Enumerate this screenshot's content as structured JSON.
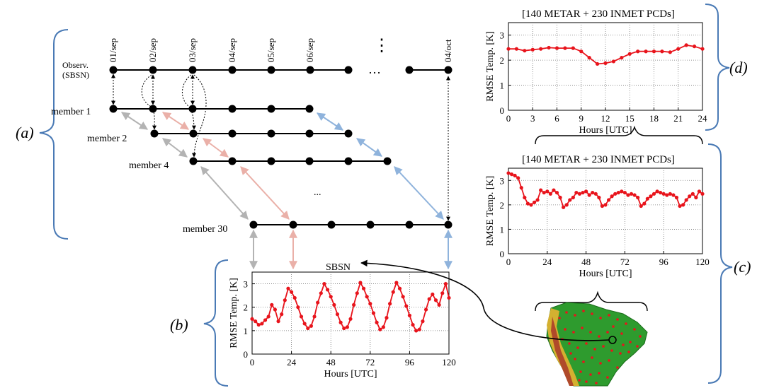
{
  "timeline": {
    "observation_label_line1": "Observ.",
    "observation_label_line2": "(SBSN)",
    "dates": [
      "01/sep",
      "02/sep",
      "03/sep",
      "04/sep",
      "05/sep",
      "06/sep",
      "04/oct"
    ],
    "vertical_ellipsis": "⋮",
    "horizontal_ellipsis": "…",
    "members": [
      "member 1",
      "member 2",
      "member 4",
      "member 30"
    ],
    "members_ellipsis": "...",
    "station_label": "SBSN"
  },
  "panel_labels": {
    "a": "(a)",
    "b": "(b)",
    "c": "(c)",
    "d": "(d)"
  },
  "colors": {
    "series": "#e8141c",
    "bracket": "#4a7ab5",
    "arrow_gray": "#b3b3b3",
    "arrow_pink": "#eab0a8",
    "arrow_blue": "#8fb3dc",
    "map_green": "#2e9b2e"
  },
  "chart_data": [
    {
      "id": "b",
      "type": "line",
      "title": "",
      "xlabel": "Hours [UTC]",
      "ylabel": "RMSE Temp. [K]",
      "xlim": [
        0,
        120
      ],
      "ylim": [
        0,
        3.5
      ],
      "xticks": [
        0,
        24,
        48,
        72,
        96,
        120
      ],
      "yticks": [
        0,
        1,
        2,
        3
      ],
      "grid": true,
      "x": [
        0,
        2,
        4,
        6,
        8,
        10,
        12,
        14,
        16,
        18,
        20,
        22,
        24,
        26,
        28,
        30,
        32,
        34,
        36,
        38,
        40,
        42,
        44,
        46,
        48,
        50,
        52,
        54,
        56,
        58,
        60,
        62,
        64,
        66,
        68,
        70,
        72,
        74,
        76,
        78,
        80,
        82,
        84,
        86,
        88,
        90,
        92,
        94,
        96,
        98,
        100,
        102,
        104,
        106,
        108,
        110,
        112,
        114,
        116,
        118,
        120
      ],
      "y": [
        1.5,
        1.4,
        1.25,
        1.3,
        1.45,
        1.6,
        2.1,
        1.9,
        1.4,
        1.7,
        2.3,
        2.8,
        2.65,
        2.4,
        2.0,
        1.6,
        1.3,
        1.1,
        1.2,
        1.6,
        2.2,
        2.6,
        3.0,
        2.75,
        2.45,
        2.1,
        1.7,
        1.35,
        1.1,
        1.15,
        1.5,
        2.1,
        2.6,
        3.05,
        2.8,
        2.45,
        2.15,
        1.75,
        1.35,
        1.05,
        1.15,
        1.55,
        2.15,
        2.65,
        3.05,
        2.8,
        2.45,
        2.05,
        1.65,
        1.25,
        1.0,
        1.05,
        1.4,
        1.9,
        2.35,
        2.55,
        2.3,
        2.1,
        2.6,
        3.0,
        2.4
      ]
    },
    {
      "id": "c",
      "type": "line",
      "title": "[140 METAR + 230 INMET PCDs]",
      "xlabel": "Hours [UTC]",
      "ylabel": "RMSE Temp. [K]",
      "xlim": [
        0,
        120
      ],
      "ylim": [
        0,
        3.5
      ],
      "xticks": [
        0,
        24,
        48,
        72,
        96,
        120
      ],
      "yticks": [
        0,
        1,
        2,
        3
      ],
      "grid": true,
      "x": [
        0,
        2,
        4,
        6,
        8,
        10,
        12,
        14,
        16,
        18,
        20,
        22,
        24,
        26,
        28,
        30,
        32,
        34,
        36,
        38,
        40,
        42,
        44,
        46,
        48,
        50,
        52,
        54,
        56,
        58,
        60,
        62,
        64,
        66,
        68,
        70,
        72,
        74,
        76,
        78,
        80,
        82,
        84,
        86,
        88,
        90,
        92,
        94,
        96,
        98,
        100,
        102,
        104,
        106,
        108,
        110,
        112,
        114,
        116,
        118,
        120
      ],
      "y": [
        3.3,
        3.25,
        3.2,
        3.1,
        2.7,
        2.3,
        2.05,
        2.0,
        2.1,
        2.2,
        2.6,
        2.5,
        2.55,
        2.45,
        2.6,
        2.5,
        2.3,
        1.9,
        2.0,
        2.2,
        2.3,
        2.5,
        2.45,
        2.5,
        2.55,
        2.4,
        2.5,
        2.45,
        2.3,
        1.95,
        2.0,
        2.2,
        2.35,
        2.45,
        2.5,
        2.55,
        2.5,
        2.4,
        2.45,
        2.4,
        2.3,
        1.95,
        2.05,
        2.25,
        2.35,
        2.45,
        2.55,
        2.5,
        2.45,
        2.4,
        2.45,
        2.4,
        2.3,
        1.95,
        2.0,
        2.2,
        2.35,
        2.45,
        2.3,
        2.55,
        2.45
      ]
    },
    {
      "id": "d",
      "type": "line",
      "title": "[140 METAR + 230 INMET PCDs]",
      "xlabel": "Hours [UTC]",
      "ylabel": "RMSE Temp. [K]",
      "xlim": [
        0,
        24
      ],
      "ylim": [
        0,
        3.5
      ],
      "xticks": [
        0,
        3,
        6,
        9,
        12,
        15,
        18,
        21,
        24
      ],
      "yticks": [
        0,
        1,
        2,
        3
      ],
      "grid": true,
      "x": [
        0,
        1,
        2,
        3,
        4,
        5,
        6,
        7,
        8,
        9,
        10,
        11,
        12,
        13,
        14,
        15,
        16,
        17,
        18,
        19,
        20,
        21,
        22,
        23,
        24
      ],
      "y": [
        2.45,
        2.45,
        2.38,
        2.42,
        2.45,
        2.5,
        2.48,
        2.48,
        2.48,
        2.35,
        2.1,
        1.85,
        1.88,
        1.95,
        2.1,
        2.25,
        2.35,
        2.35,
        2.35,
        2.35,
        2.32,
        2.45,
        2.6,
        2.55,
        2.45
      ]
    }
  ]
}
